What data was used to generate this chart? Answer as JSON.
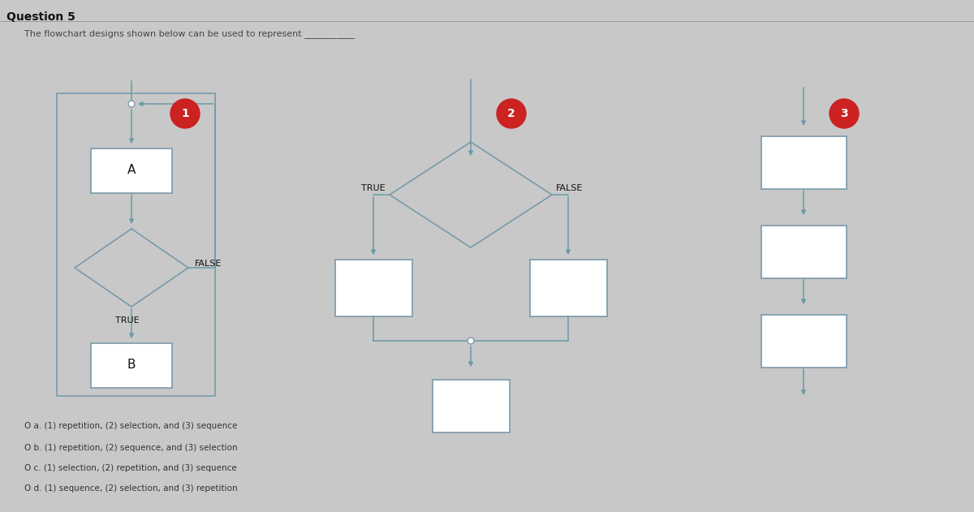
{
  "title": "Question 5",
  "subtitle": "The flowchart designs shown below can be used to represent ___________",
  "bg_color": "#c8c8c8",
  "box_edge_color": "#7a9aaa",
  "arrow_color": "#6a9aaa",
  "text_color": "#111111",
  "answer_color": "#333333",
  "circle_color": "#cc2222",
  "answers": [
    "O a. (1) repetition, (2) selection, and (3) sequence",
    "O b. (1) repetition, (2) sequence, and (3) selection",
    "O c. (1) selection, (2) repetition, and (3) sequence",
    "O d. (1) sequence, (2) selection, and (3) repetition"
  ]
}
